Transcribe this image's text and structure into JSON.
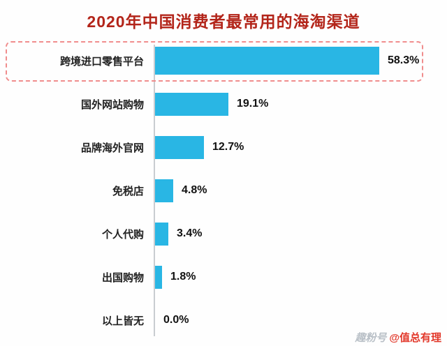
{
  "title": "2020年中国消费者最常用的海淘渠道",
  "watermark": {
    "logo": "趣粉号",
    "handle": "@值总有理"
  },
  "colors": {
    "title": "#b3251a",
    "bar": "#29b6e4",
    "highlight_border": "#f08d8d",
    "axis": "#c9cdd1",
    "value_text": "#111111",
    "watermark_handle": "#e2382a"
  },
  "chart_data": {
    "type": "bar",
    "orientation": "horizontal",
    "title": "2020年中国消费者最常用的海淘渠道",
    "categories": [
      "跨境进口零售平台",
      "国外网站购物",
      "品牌海外官网",
      "免税店",
      "个人代购",
      "出国购物",
      "以上皆无"
    ],
    "values": [
      58.3,
      19.1,
      12.7,
      4.8,
      3.4,
      1.8,
      0.0
    ],
    "value_labels": [
      "58.3%",
      "19.1%",
      "12.7%",
      "4.8%",
      "3.4%",
      "1.8%",
      "0.0%"
    ],
    "unit": "%",
    "xlim": [
      0,
      60
    ],
    "highlighted_index": 0,
    "highlighted_category": "跨境进口零售平台",
    "legend": false,
    "grid": false
  }
}
